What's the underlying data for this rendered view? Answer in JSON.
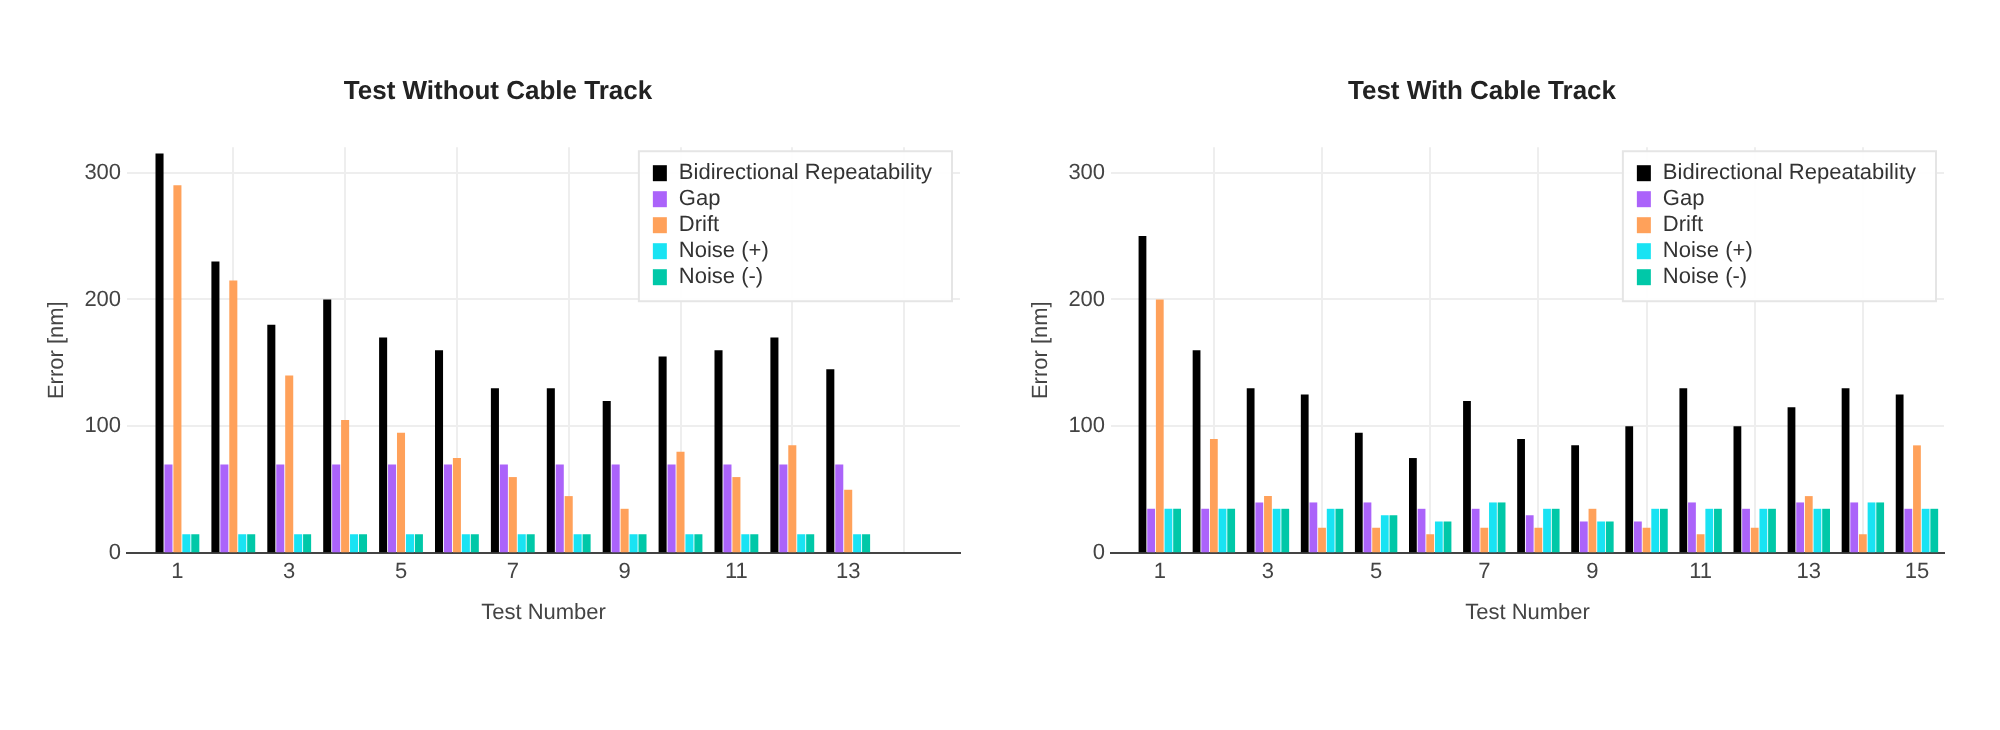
{
  "chart_data": [
    {
      "type": "bar",
      "title": "Test Without Cable Track",
      "xlabel": "Test Number",
      "ylabel": "Error [nm]",
      "x": [
        1,
        2,
        3,
        4,
        5,
        6,
        7,
        8,
        9,
        10,
        11,
        12,
        13
      ],
      "series": [
        {
          "name": "Bidirectional Repeatability",
          "color": "#000000",
          "values": [
            315,
            230,
            180,
            200,
            170,
            160,
            130,
            130,
            120,
            155,
            160,
            170,
            145
          ]
        },
        {
          "name": "Gap",
          "color": "#ab63fa",
          "values": [
            70,
            70,
            70,
            70,
            70,
            70,
            70,
            70,
            70,
            70,
            70,
            70,
            70
          ]
        },
        {
          "name": "Drift",
          "color": "#ffa15a",
          "values": [
            290,
            215,
            140,
            105,
            95,
            75,
            60,
            45,
            35,
            80,
            60,
            85,
            50
          ]
        },
        {
          "name": "Noise (+)",
          "color": "#19e3f3",
          "values": [
            15,
            15,
            15,
            15,
            15,
            15,
            15,
            15,
            15,
            15,
            15,
            15,
            15
          ]
        },
        {
          "name": "Noise (-)",
          "color": "#00c8a8",
          "values": [
            15,
            15,
            15,
            15,
            15,
            15,
            15,
            15,
            15,
            15,
            15,
            15,
            15
          ]
        }
      ],
      "xlim": [
        0.1,
        15
      ],
      "xticks": [
        1,
        3,
        5,
        7,
        9,
        11,
        13
      ],
      "ylim": [
        0,
        320
      ],
      "yticks": [
        0,
        100,
        200,
        300
      ],
      "grid": true,
      "legend": "top right"
    },
    {
      "type": "bar",
      "title": "Test With Cable Track",
      "xlabel": "Test Number",
      "ylabel": "Error [nm]",
      "x": [
        1,
        2,
        3,
        4,
        5,
        6,
        7,
        8,
        9,
        10,
        11,
        12,
        13,
        14,
        15
      ],
      "series": [
        {
          "name": "Bidirectional Repeatability",
          "color": "#000000",
          "values": [
            250,
            160,
            130,
            125,
            95,
            75,
            120,
            90,
            85,
            100,
            130,
            100,
            115,
            130,
            125
          ]
        },
        {
          "name": "Gap",
          "color": "#ab63fa",
          "values": [
            35,
            35,
            40,
            40,
            40,
            35,
            35,
            30,
            25,
            25,
            40,
            35,
            40,
            40,
            35
          ]
        },
        {
          "name": "Drift",
          "color": "#ffa15a",
          "values": [
            200,
            90,
            45,
            20,
            20,
            15,
            20,
            20,
            35,
            20,
            15,
            20,
            45,
            15,
            85
          ]
        },
        {
          "name": "Noise (+)",
          "color": "#19e3f3",
          "values": [
            35,
            35,
            35,
            35,
            30,
            25,
            40,
            35,
            25,
            35,
            35,
            35,
            35,
            40,
            35
          ]
        },
        {
          "name": "Noise (-)",
          "color": "#00c8a8",
          "values": [
            35,
            35,
            35,
            35,
            30,
            25,
            40,
            35,
            25,
            35,
            35,
            35,
            35,
            40,
            35
          ]
        }
      ],
      "xlim": [
        0.1,
        15.5
      ],
      "xticks": [
        1,
        3,
        5,
        7,
        9,
        11,
        13,
        15
      ],
      "ylim": [
        0,
        320
      ],
      "yticks": [
        0,
        100,
        200,
        300
      ],
      "grid": true,
      "legend": "top right"
    }
  ]
}
